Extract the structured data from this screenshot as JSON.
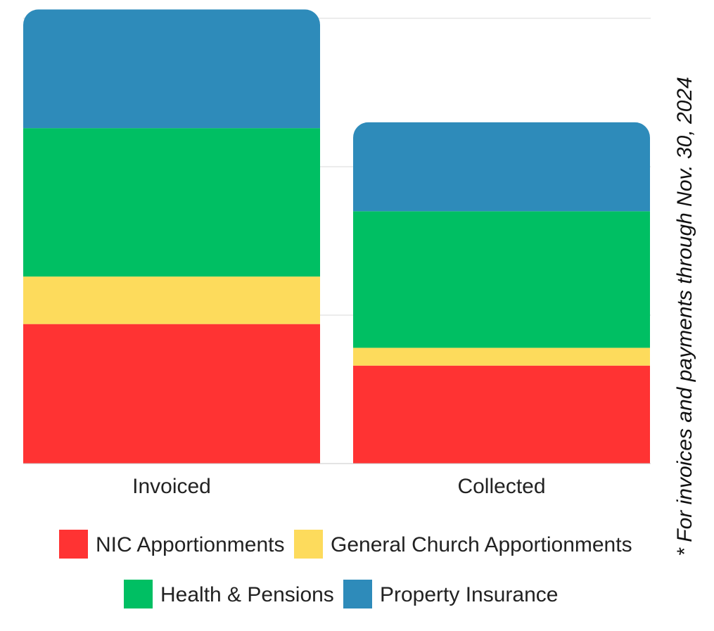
{
  "chart_data": {
    "type": "bar",
    "stacked": true,
    "categories": [
      "Invoiced",
      "Collected"
    ],
    "series": [
      {
        "name": "NIC Apportionments",
        "color": "#FF3333",
        "values": [
          47,
          33
        ]
      },
      {
        "name": "General Church Apportionments",
        "color": "#FDDB5C",
        "values": [
          16,
          6
        ]
      },
      {
        "name": "Health & Pensions",
        "color": "#00BF63",
        "values": [
          50,
          46
        ]
      },
      {
        "name": "Property Insurance",
        "color": "#2E8BBA",
        "values": [
          40,
          30
        ]
      }
    ],
    "ylim": [
      0,
      150
    ],
    "y_gridlines": [
      50,
      100,
      150
    ],
    "grid": true,
    "legend_position": "bottom",
    "note": "* For invoices and payments through Nov. 30, 2024"
  }
}
